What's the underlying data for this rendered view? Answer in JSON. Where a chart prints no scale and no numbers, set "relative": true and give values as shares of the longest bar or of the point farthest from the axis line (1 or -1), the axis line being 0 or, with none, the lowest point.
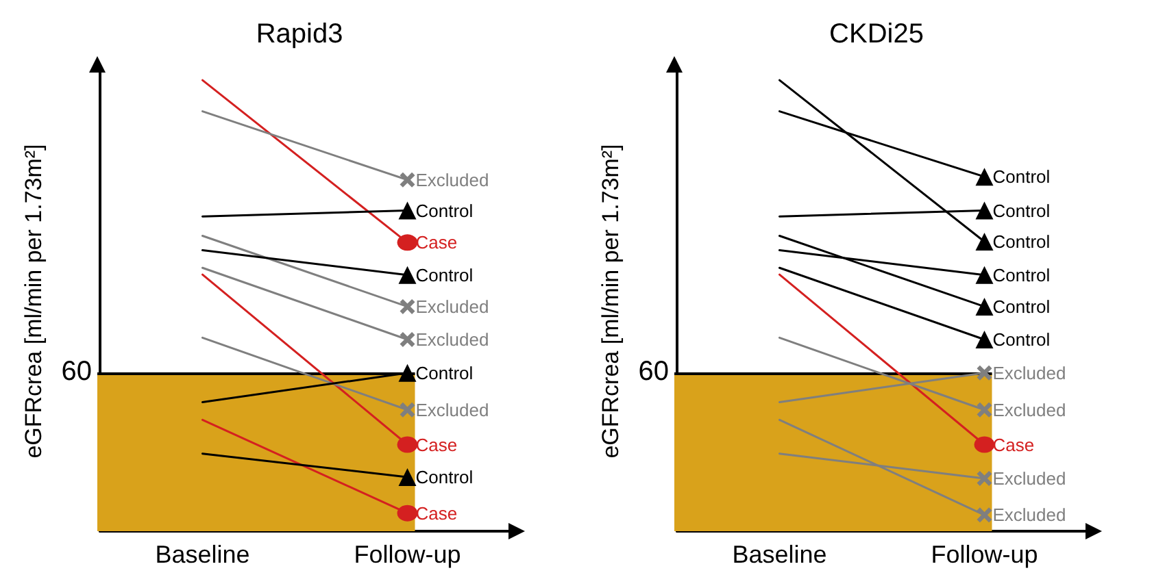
{
  "chart_data": [
    {
      "type": "line",
      "title": "Rapid3",
      "ylabel": "eGFRcrea [ml/min per 1.73m²]",
      "categories": [
        "Baseline",
        "Follow-up"
      ],
      "relative": true,
      "legend": false,
      "grid": false,
      "line_style": "solid",
      "annotations": [
        "60"
      ],
      "ref_lines": [
        {
          "axis": "y",
          "value": 0.351,
          "color": "#000000"
        }
      ],
      "bands": [
        {
          "axis": "y",
          "from": 0,
          "to": 0.351,
          "color": "#d9a21b"
        }
      ],
      "series": [
        {
          "name": "Case",
          "color": "#d42020",
          "marker": "circle",
          "values": [
            1.0,
            0.64
          ]
        },
        {
          "name": "Excluded",
          "color": "#7f7f7f",
          "marker": "cross",
          "values": [
            0.931,
            0.779
          ]
        },
        {
          "name": "Control",
          "color": "#000000",
          "marker": "triangle",
          "values": [
            0.698,
            0.711
          ]
        },
        {
          "name": "Excluded",
          "color": "#7f7f7f",
          "marker": "cross",
          "values": [
            0.655,
            0.498
          ]
        },
        {
          "name": "Control",
          "color": "#000000",
          "marker": "triangle",
          "values": [
            0.623,
            0.568
          ]
        },
        {
          "name": "Excluded",
          "color": "#7f7f7f",
          "marker": "cross",
          "values": [
            0.584,
            0.425
          ]
        },
        {
          "name": "Case",
          "color": "#d42020",
          "marker": "circle",
          "values": [
            0.569,
            0.192
          ]
        },
        {
          "name": "Excluded",
          "color": "#7f7f7f",
          "marker": "cross",
          "values": [
            0.429,
            0.269
          ]
        },
        {
          "name": "Control",
          "color": "#000000",
          "marker": "triangle",
          "values": [
            0.286,
            0.351
          ]
        },
        {
          "name": "Case",
          "color": "#d42020",
          "marker": "circle",
          "values": [
            0.247,
            0.04
          ]
        },
        {
          "name": "Control",
          "color": "#000000",
          "marker": "triangle",
          "values": [
            0.172,
            0.12
          ]
        }
      ]
    },
    {
      "type": "line",
      "title": "CKDi25",
      "ylabel": "eGFRcrea [ml/min per 1.73m²]",
      "categories": [
        "Baseline",
        "Follow-up"
      ],
      "relative": true,
      "legend": false,
      "grid": false,
      "line_style": "solid",
      "annotations": [
        "60"
      ],
      "ref_lines": [
        {
          "axis": "y",
          "value": 0.351,
          "color": "#000000"
        }
      ],
      "bands": [
        {
          "axis": "y",
          "from": 0,
          "to": 0.351,
          "color": "#d9a21b"
        }
      ],
      "series": [
        {
          "name": "Control",
          "color": "#000000",
          "marker": "triangle",
          "values": [
            1.0,
            0.642
          ]
        },
        {
          "name": "Control",
          "color": "#000000",
          "marker": "triangle",
          "values": [
            0.931,
            0.786
          ]
        },
        {
          "name": "Control",
          "color": "#000000",
          "marker": "triangle",
          "values": [
            0.698,
            0.711
          ]
        },
        {
          "name": "Control",
          "color": "#000000",
          "marker": "triangle",
          "values": [
            0.655,
            0.498
          ]
        },
        {
          "name": "Control",
          "color": "#000000",
          "marker": "triangle",
          "values": [
            0.623,
            0.568
          ]
        },
        {
          "name": "Control",
          "color": "#000000",
          "marker": "triangle",
          "values": [
            0.584,
            0.425
          ]
        },
        {
          "name": "Case",
          "color": "#d42020",
          "marker": "circle",
          "values": [
            0.569,
            0.192
          ]
        },
        {
          "name": "Excluded",
          "color": "#7f7f7f",
          "marker": "cross",
          "values": [
            0.429,
            0.269
          ]
        },
        {
          "name": "Excluded",
          "color": "#7f7f7f",
          "marker": "cross",
          "values": [
            0.286,
            0.351
          ]
        },
        {
          "name": "Excluded",
          "color": "#7f7f7f",
          "marker": "cross",
          "values": [
            0.247,
            0.036
          ]
        },
        {
          "name": "Excluded",
          "color": "#7f7f7f",
          "marker": "cross",
          "values": [
            0.172,
            0.117
          ]
        }
      ]
    }
  ]
}
